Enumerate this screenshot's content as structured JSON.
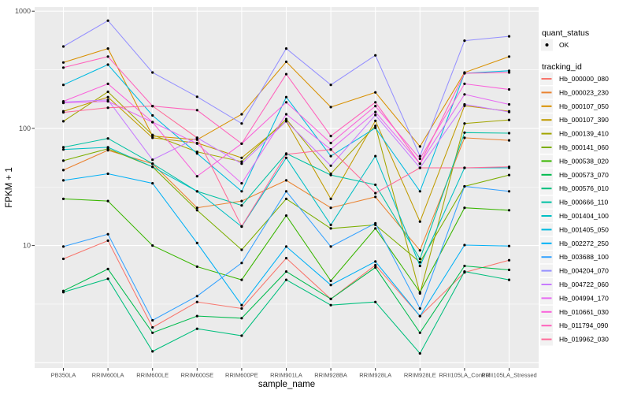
{
  "figure": {
    "background": "#FFFFFF",
    "panel_background": "#EBEBEB",
    "gridline_color": "#FFFFFF",
    "tick_color": "#333333",
    "tick_label_color": "#4D4D4D",
    "point_color": "#000000"
  },
  "chart_data": {
    "type": "line",
    "title": "",
    "xlabel": "sample_name",
    "ylabel": "FPKM + 1",
    "y_scale": "log10",
    "ylim": [
      1,
      1000
    ],
    "y_ticks": [
      10,
      100,
      1000
    ],
    "y_tick_labels": [
      "10",
      "100",
      "1000"
    ],
    "y_minor_ticks": [
      3.162,
      31.62,
      316.2
    ],
    "grid": true,
    "legend_position": "right",
    "categories": [
      "PB350LA",
      "RRIM600LA",
      "RRIM600LE",
      "RRIM600SE",
      "RRIM600PE",
      "RRIM901LA",
      "RRIM928BA",
      "RRIM928LA",
      "RRIM928LE",
      "RRII105LA_Control",
      "RRII105LA_Stressed"
    ],
    "series": [
      {
        "name": "Hb_000000_080",
        "color": "#F8766D",
        "values": [
          7.7,
          11,
          2.0,
          3.3,
          2.9,
          7.8,
          3.5,
          6.8,
          2.5,
          5.9,
          7.5
        ]
      },
      {
        "name": "Hb_000023_230",
        "color": "#EA8331",
        "values": [
          44,
          65,
          50,
          21,
          24,
          36,
          21,
          26,
          9.1,
          83,
          79
        ]
      },
      {
        "name": "Hb_000107_050",
        "color": "#D89000",
        "values": [
          365,
          480,
          86,
          80,
          132,
          370,
          152,
          203,
          70,
          300,
          410
        ]
      },
      {
        "name": "Hb_000107_390",
        "color": "#C09B00",
        "values": [
          140,
          185,
          83,
          75,
          56,
          115,
          25,
          116,
          16,
          156,
          140
        ]
      },
      {
        "name": "Hb_000139_410",
        "color": "#A3A500",
        "values": [
          115,
          205,
          88,
          63,
          52,
          120,
          41,
          105,
          3.9,
          110,
          118
        ]
      },
      {
        "name": "Hb_000141_060",
        "color": "#7CAE00",
        "values": [
          53,
          67,
          47,
          20,
          9.2,
          25,
          14,
          15,
          7.2,
          32,
          40
        ]
      },
      {
        "name": "Hb_000538_020",
        "color": "#39B600",
        "values": [
          25,
          24,
          10,
          6.6,
          5.1,
          18,
          5.0,
          14,
          4.0,
          21,
          20
        ]
      },
      {
        "name": "Hb_000573_070",
        "color": "#00BB4E",
        "values": [
          4.1,
          6.3,
          1.8,
          2.5,
          2.4,
          6.0,
          3.5,
          6.5,
          1.8,
          6.7,
          6.2
        ]
      },
      {
        "name": "Hb_000576_010",
        "color": "#00BF7D",
        "values": [
          4.0,
          5.2,
          1.25,
          1.95,
          1.7,
          5.1,
          3.1,
          3.3,
          1.2,
          6.0,
          5.1
        ]
      },
      {
        "name": "Hb_000666_110",
        "color": "#00C1A3",
        "values": [
          69,
          82,
          50,
          29,
          22,
          61,
          40,
          33,
          7.7,
          92,
          91
        ]
      },
      {
        "name": "Hb_001404_100",
        "color": "#00BFC4",
        "values": [
          66,
          69,
          47,
          29,
          14.5,
          56,
          15,
          58,
          6.7,
          46,
          46
        ]
      },
      {
        "name": "Hb_001405_050",
        "color": "#00BAE0",
        "values": [
          235,
          350,
          129,
          61,
          29,
          185,
          58,
          101,
          29,
          295,
          310
        ]
      },
      {
        "name": "Hb_002272_250",
        "color": "#00B0F6",
        "values": [
          36,
          41,
          34,
          10.5,
          3.1,
          9.8,
          4.6,
          7.3,
          2.5,
          10.1,
          9.9
        ]
      },
      {
        "name": "Hb_003688_100",
        "color": "#35A2FF",
        "values": [
          9.8,
          12.5,
          2.3,
          3.7,
          7.1,
          29,
          9.8,
          15.5,
          2.9,
          32,
          29
        ]
      },
      {
        "name": "Hb_004204_070",
        "color": "#9590FF",
        "values": [
          500,
          830,
          300,
          186,
          110,
          480,
          235,
          420,
          58,
          560,
          610
        ]
      },
      {
        "name": "Hb_004722_060",
        "color": "#C77CFF",
        "values": [
          168,
          175,
          54,
          83,
          50,
          115,
          48,
          130,
          46,
          160,
          138
        ]
      },
      {
        "name": "Hb_004994_170",
        "color": "#E76BF3",
        "values": [
          165,
          170,
          113,
          74,
          34,
          132,
          66,
          138,
          50,
          195,
          160
        ]
      },
      {
        "name": "Hb_010661_030",
        "color": "#FA62DB",
        "values": [
          170,
          240,
          113,
          39,
          74,
          167,
          75,
          155,
          55,
          240,
          215
        ]
      },
      {
        "name": "Hb_011794_090",
        "color": "#FF62BC",
        "values": [
          330,
          410,
          155,
          143,
          74,
          290,
          86,
          167,
          50,
          295,
          300
        ]
      },
      {
        "name": "Hb_019962_030",
        "color": "#FF6A98",
        "values": [
          137,
          150,
          155,
          83,
          14.6,
          60,
          66,
          28,
          46,
          46,
          47
        ]
      }
    ],
    "legend": {
      "quant_status": {
        "title": "quant_status",
        "items": [
          {
            "label": "OK",
            "symbol": "point"
          }
        ]
      },
      "tracking_id": {
        "title": "tracking_id"
      }
    }
  }
}
